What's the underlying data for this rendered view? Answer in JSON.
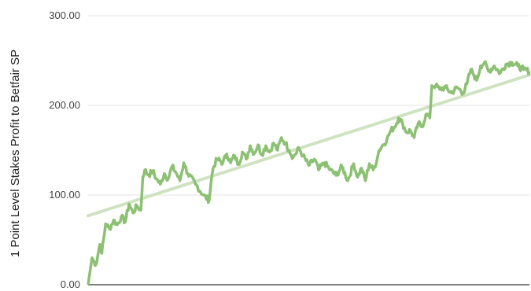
{
  "chart_data": {
    "type": "line",
    "ylabel": "1 Point Level Stakes Profit to Betfair SP",
    "ylim": [
      0,
      300
    ],
    "yticks": [
      {
        "value": 0,
        "label": "0.00"
      },
      {
        "value": 100,
        "label": "100.00"
      },
      {
        "value": 200,
        "label": "200.00"
      },
      {
        "value": 300,
        "label": "300.00"
      }
    ],
    "grid": true,
    "x_count": 200,
    "series": [
      {
        "role": "profit",
        "color": "#8cc072",
        "keypoints": [
          [
            0,
            0
          ],
          [
            2,
            30
          ],
          [
            4,
            22
          ],
          [
            6,
            45
          ],
          [
            7,
            35
          ],
          [
            9,
            68
          ],
          [
            11,
            62
          ],
          [
            13,
            72
          ],
          [
            15,
            67
          ],
          [
            17,
            76
          ],
          [
            19,
            70
          ],
          [
            21,
            90
          ],
          [
            23,
            80
          ],
          [
            25,
            88
          ],
          [
            27,
            83
          ],
          [
            28,
            120
          ],
          [
            29,
            128
          ],
          [
            31,
            122
          ],
          [
            33,
            127
          ],
          [
            35,
            118
          ],
          [
            37,
            112
          ],
          [
            39,
            124
          ],
          [
            41,
            118
          ],
          [
            43,
            132
          ],
          [
            45,
            125
          ],
          [
            47,
            116
          ],
          [
            49,
            136
          ],
          [
            51,
            124
          ],
          [
            55,
            112
          ],
          [
            59,
            100
          ],
          [
            62,
            94
          ],
          [
            63,
            115
          ],
          [
            64,
            130
          ],
          [
            66,
            140
          ],
          [
            69,
            136
          ],
          [
            71,
            146
          ],
          [
            73,
            136
          ],
          [
            75,
            144
          ],
          [
            77,
            134
          ],
          [
            79,
            148
          ],
          [
            81,
            140
          ],
          [
            83,
            155
          ],
          [
            85,
            146
          ],
          [
            87,
            156
          ],
          [
            89,
            145
          ],
          [
            91,
            155
          ],
          [
            93,
            148
          ],
          [
            95,
            158
          ],
          [
            97,
            150
          ],
          [
            99,
            164
          ],
          [
            101,
            158
          ],
          [
            103,
            150
          ],
          [
            105,
            142
          ],
          [
            108,
            152
          ],
          [
            110,
            144
          ],
          [
            113,
            133
          ],
          [
            116,
            140
          ],
          [
            118,
            128
          ],
          [
            121,
            136
          ],
          [
            124,
            128
          ],
          [
            127,
            122
          ],
          [
            130,
            132
          ],
          [
            133,
            116
          ],
          [
            136,
            135
          ],
          [
            138,
            120
          ],
          [
            140,
            130
          ],
          [
            142,
            116
          ],
          [
            144,
            135
          ],
          [
            146,
            128
          ],
          [
            148,
            140
          ],
          [
            149,
            150
          ],
          [
            151,
            156
          ],
          [
            153,
            162
          ],
          [
            155,
            172
          ],
          [
            157,
            176
          ],
          [
            159,
            186
          ],
          [
            161,
            180
          ],
          [
            163,
            170
          ],
          [
            165,
            172
          ],
          [
            167,
            164
          ],
          [
            169,
            180
          ],
          [
            171,
            176
          ],
          [
            173,
            190
          ],
          [
            175,
            186
          ],
          [
            176,
            222
          ],
          [
            178,
            222
          ],
          [
            180,
            218
          ],
          [
            183,
            220
          ],
          [
            186,
            214
          ],
          [
            189,
            220
          ],
          [
            192,
            214
          ],
          [
            194,
            224
          ],
          [
            196,
            240
          ],
          [
            197,
            236
          ],
          [
            199,
            228
          ],
          [
            201,
            244
          ],
          [
            203,
            248
          ],
          [
            205,
            238
          ],
          [
            208,
            244
          ],
          [
            211,
            236
          ],
          [
            214,
            246
          ],
          [
            217,
            248
          ],
          [
            220,
            244
          ],
          [
            223,
            240
          ],
          [
            226,
            238
          ]
        ],
        "x_max": 226
      },
      {
        "role": "trend",
        "color": "#cfe3c3",
        "start": [
          0,
          77
        ],
        "end": [
          226,
          234
        ]
      }
    ]
  }
}
